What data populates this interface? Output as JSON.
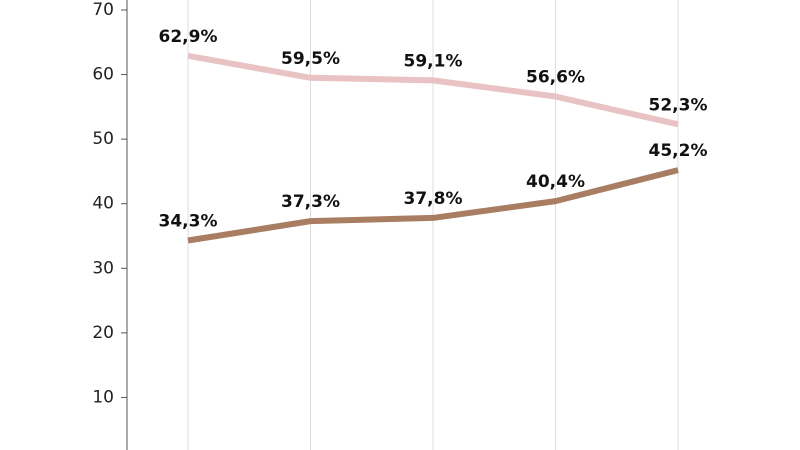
{
  "chart_data": {
    "type": "line",
    "categories": [
      null,
      null,
      null,
      null,
      null
    ],
    "series": [
      {
        "color": "#e9c3c3",
        "values": [
          62.9,
          59.5,
          59.1,
          56.6,
          52.3
        ],
        "value_labels": [
          "62,9%",
          "59,5%",
          "59,1%",
          "56,6%",
          "52,3%"
        ]
      },
      {
        "color": "#a97d62",
        "values": [
          34.3,
          37.3,
          37.8,
          40.4,
          45.2
        ],
        "value_labels": [
          "34,3%",
          "37,3%",
          "37,8%",
          "40,4%",
          "45,2%"
        ]
      }
    ],
    "ylim": [
      0,
      70
    ],
    "yticks": [
      10,
      20,
      30,
      40,
      50,
      60,
      70
    ],
    "grid": true
  }
}
